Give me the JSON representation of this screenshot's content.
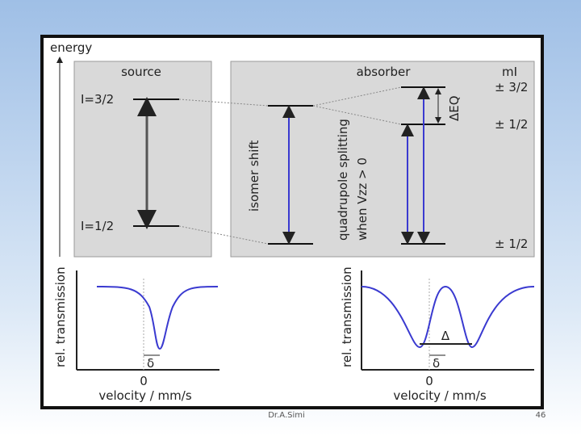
{
  "diagram": {
    "energy_label": "energy",
    "source": {
      "title": "source",
      "upper": "I=3/2",
      "lower": "I=1/2"
    },
    "absorber": {
      "title": "absorber",
      "m_label": "mI",
      "levels": [
        "± 3/2",
        "± 1/2",
        "± 1/2"
      ],
      "splitting_label": "ΔEQ",
      "isomer_shift": "isomer shift",
      "quadrupole": "quadrupole splitting",
      "quadrupole_condition": "when Vzz > 0"
    },
    "plots": [
      {
        "y_label": "rel. transmission",
        "x_label": "velocity / mm/s",
        "zero": "0",
        "shift": "δ"
      },
      {
        "y_label": "rel. transmission",
        "x_label": "velocity / mm/s",
        "zero": "0",
        "shift": "δ",
        "splitting": "Δ"
      }
    ]
  },
  "footer": {
    "author": "Dr.A.Simi",
    "page": "46"
  }
}
